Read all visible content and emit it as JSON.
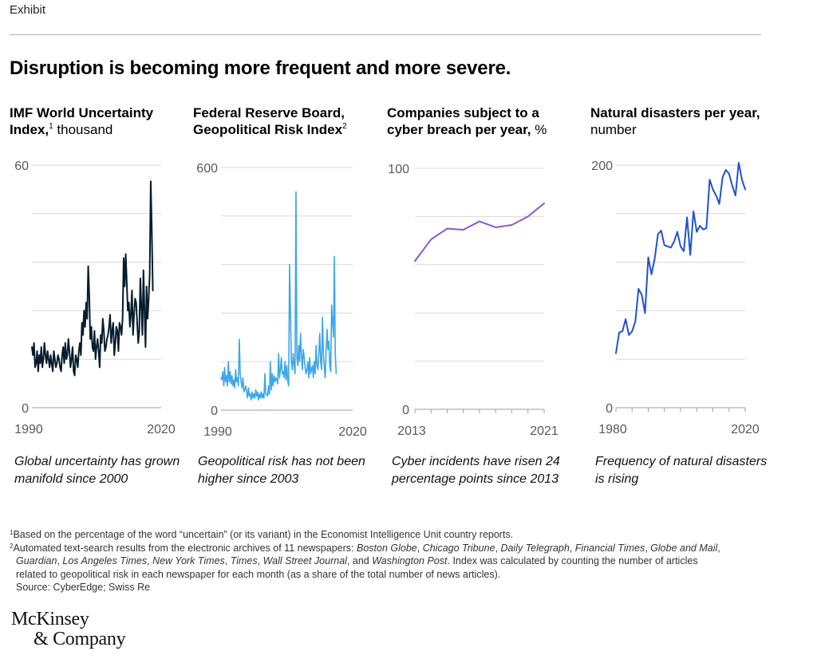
{
  "exhibit_label": "Exhibit",
  "headline": "Disruption is becoming more frequent and more severe.",
  "panels": [
    {
      "title_bold": "IMF World Uncertainty Index,",
      "sup": "1",
      "title_rest": " thousand",
      "caption": "Global uncertainty has grown manifold since 2000"
    },
    {
      "title_bold": "Federal Reserve Board, Geopolitical Risk Index",
      "sup": "2",
      "title_rest": "",
      "caption": "Geopolitical risk has not been higher since 2003"
    },
    {
      "title_bold": "Companies subject to a cyber breach per year,",
      "sup": "",
      "title_rest": " %",
      "caption": "Cyber incidents have risen 24 percentage points since 2013"
    },
    {
      "title_bold": "Natural disasters per year,",
      "sup": "",
      "title_rest": " number",
      "caption": "Frequency of natural disasters is rising"
    }
  ],
  "colors": {
    "imf": "#051c2c",
    "geo": "#3ca7e8",
    "cyber": "#8c5ac8",
    "disasters": "#2251d6",
    "grid": "#d9d9d9",
    "tick": "#595959"
  },
  "chart_data": [
    {
      "type": "line",
      "title": "IMF World Uncertainty Index, thousand",
      "xlim": [
        1990,
        2021
      ],
      "ylim": [
        0,
        60
      ],
      "x_ticks": [
        "1990",
        "2020"
      ],
      "y_ticks": [
        "0",
        "60"
      ],
      "x_start": 1990,
      "x_step": 0.25,
      "series": [
        {
          "values": [
            15,
            13,
            16,
            10,
            11,
            14,
            9,
            13,
            11,
            15,
            10,
            12,
            16,
            13,
            11,
            14,
            12,
            10,
            13,
            11,
            9,
            14,
            12,
            10,
            11,
            13,
            12,
            10,
            9,
            13,
            15,
            11,
            16,
            12,
            13,
            17,
            14,
            10,
            12,
            15,
            9,
            8,
            13,
            12,
            10,
            14,
            16,
            13,
            21,
            18,
            24,
            20,
            26,
            22,
            35,
            28,
            17,
            20,
            15,
            14,
            19,
            12,
            15,
            17,
            14,
            10,
            18,
            16,
            22,
            19,
            14,
            15,
            17,
            18,
            20,
            23,
            16,
            19,
            21,
            13,
            16,
            20,
            19,
            14,
            21,
            20,
            18,
            22,
            37,
            30,
            38,
            31,
            24,
            26,
            20,
            23,
            29,
            18,
            23,
            27,
            26,
            21,
            16,
            19,
            32,
            25,
            18,
            34,
            24,
            15,
            30,
            22,
            27,
            33,
            56,
            44,
            29
          ]
        }
      ]
    },
    {
      "type": "line",
      "title": "Federal Reserve Board, Geopolitical Risk Index",
      "xlim": [
        1985,
        2021
      ],
      "ylim": [
        0,
        600
      ],
      "x_ticks": [
        "1990",
        "2020"
      ],
      "y_ticks": [
        "0",
        "600"
      ],
      "x_start": 1985,
      "x_step": 0.25,
      "series": [
        {
          "values": [
            80,
            75,
            95,
            60,
            105,
            70,
            85,
            60,
            120,
            70,
            95,
            65,
            85,
            60,
            75,
            55,
            100,
            70,
            80,
            60,
            175,
            90,
            70,
            55,
            80,
            45,
            50,
            60,
            45,
            30,
            55,
            35,
            40,
            25,
            45,
            30,
            40,
            30,
            50,
            35,
            45,
            25,
            40,
            30,
            45,
            30,
            40,
            30,
            90,
            40,
            40,
            35,
            60,
            40,
            120,
            50,
            90,
            60,
            85,
            70,
            80,
            75,
            65,
            140,
            80,
            100,
            130,
            90,
            95,
            80,
            120,
            75,
            110,
            70,
            60,
            360,
            240,
            120,
            100,
            140,
            110,
            90,
            540,
            130,
            110,
            160,
            120,
            190,
            135,
            100,
            150,
            130,
            105,
            90,
            100,
            120,
            80,
            130,
            90,
            100,
            110,
            80,
            120,
            90,
            160,
            110,
            100,
            140,
            190,
            120,
            100,
            230,
            140,
            105,
            80,
            150,
            200,
            150,
            170,
            110,
            95,
            260,
            220,
            180,
            380,
            140,
            90
          ]
        }
      ]
    },
    {
      "type": "line",
      "title": "Companies subject to a cyber breach per year, %",
      "xlim": [
        2013,
        2021
      ],
      "ylim": [
        0,
        100
      ],
      "x_ticks": [
        "2013",
        "2021"
      ],
      "y_ticks": [
        "0",
        "100"
      ],
      "x": [
        2013,
        2014,
        2015,
        2016,
        2017,
        2018,
        2019,
        2020,
        2021
      ],
      "series": [
        {
          "values": [
            61.5,
            70.5,
            75,
            74.5,
            78,
            75.5,
            76.5,
            80,
            85.5
          ]
        }
      ]
    },
    {
      "type": "line",
      "title": "Natural disasters per year, number",
      "xlim": [
        1980,
        2020
      ],
      "ylim": [
        0,
        200
      ],
      "x_ticks": [
        "1980",
        "2020"
      ],
      "y_ticks": [
        "0",
        "200"
      ],
      "x": [
        1980,
        1981,
        1982,
        1983,
        1984,
        1985,
        1986,
        1987,
        1988,
        1989,
        1990,
        1991,
        1992,
        1993,
        1994,
        1995,
        1996,
        1997,
        1998,
        1999,
        2000,
        2001,
        2002,
        2003,
        2004,
        2005,
        2006,
        2007,
        2008,
        2009,
        2010,
        2011,
        2012,
        2013,
        2014,
        2015,
        2016,
        2017,
        2018,
        2019,
        2020
      ],
      "series": [
        {
          "values": [
            45,
            62,
            63,
            73,
            60,
            63,
            71,
            98,
            93,
            78,
            124,
            110,
            123,
            143,
            146,
            134,
            133,
            132,
            137,
            145,
            133,
            129,
            157,
            126,
            162,
            145,
            150,
            147,
            148,
            188,
            180,
            175,
            168,
            190,
            196,
            193,
            183,
            175,
            202,
            188,
            180
          ]
        }
      ]
    }
  ],
  "footnotes": {
    "fn1_num": "1",
    "fn1": "Based on the percentage of the word “uncertain” (or its variant) in the Economist Intelligence Unit country reports.",
    "fn2_num": "2",
    "fn2_a": "Automated text-search results from the electronic archives of 11 newspapers: ",
    "fn2_papers1": "Boston Globe",
    "fn2_c1": ", ",
    "fn2_papers2": "Chicago Tribune",
    "fn2_c2": ", ",
    "fn2_papers3": "Daily Telegraph",
    "fn2_c3": ", ",
    "fn2_papers4": "Financial Times",
    "fn2_c4": ", ",
    "fn2_papers5": "Globe and Mail",
    "fn2_c5": ",",
    "fn2_papers6": "Guardian",
    "fn2_c6": ", ",
    "fn2_papers7": "Los Angeles Times",
    "fn2_c7": ", ",
    "fn2_papers8": "New York Times",
    "fn2_c8": ", ",
    "fn2_papers9": "Times",
    "fn2_c9": ", ",
    "fn2_papers10": "Wall Street Journal",
    "fn2_c10": ", and ",
    "fn2_papers11": "Washington Post",
    "fn2_b": ". Index was calculated by counting the number of articles",
    "fn2_c": "related to geopolitical risk in each newspaper for each month (as a share of the total number of news articles).",
    "source": "Source: CyberEdge; Swiss Re"
  },
  "logo": {
    "line1": "McKinsey",
    "line2": "& Company"
  }
}
